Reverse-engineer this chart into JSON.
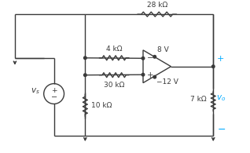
{
  "bg_color": "#ffffff",
  "line_color": "#3a3a3a",
  "cyan_color": "#00aaff",
  "label_28k": "28 kΩ",
  "label_4k": "4 kΩ",
  "label_30k": "30 kΩ",
  "label_10k": "10 kΩ",
  "label_7k": "7 kΩ",
  "label_8v": "8 V",
  "label_12v": "−12 V",
  "plus": "+",
  "minus": "−"
}
